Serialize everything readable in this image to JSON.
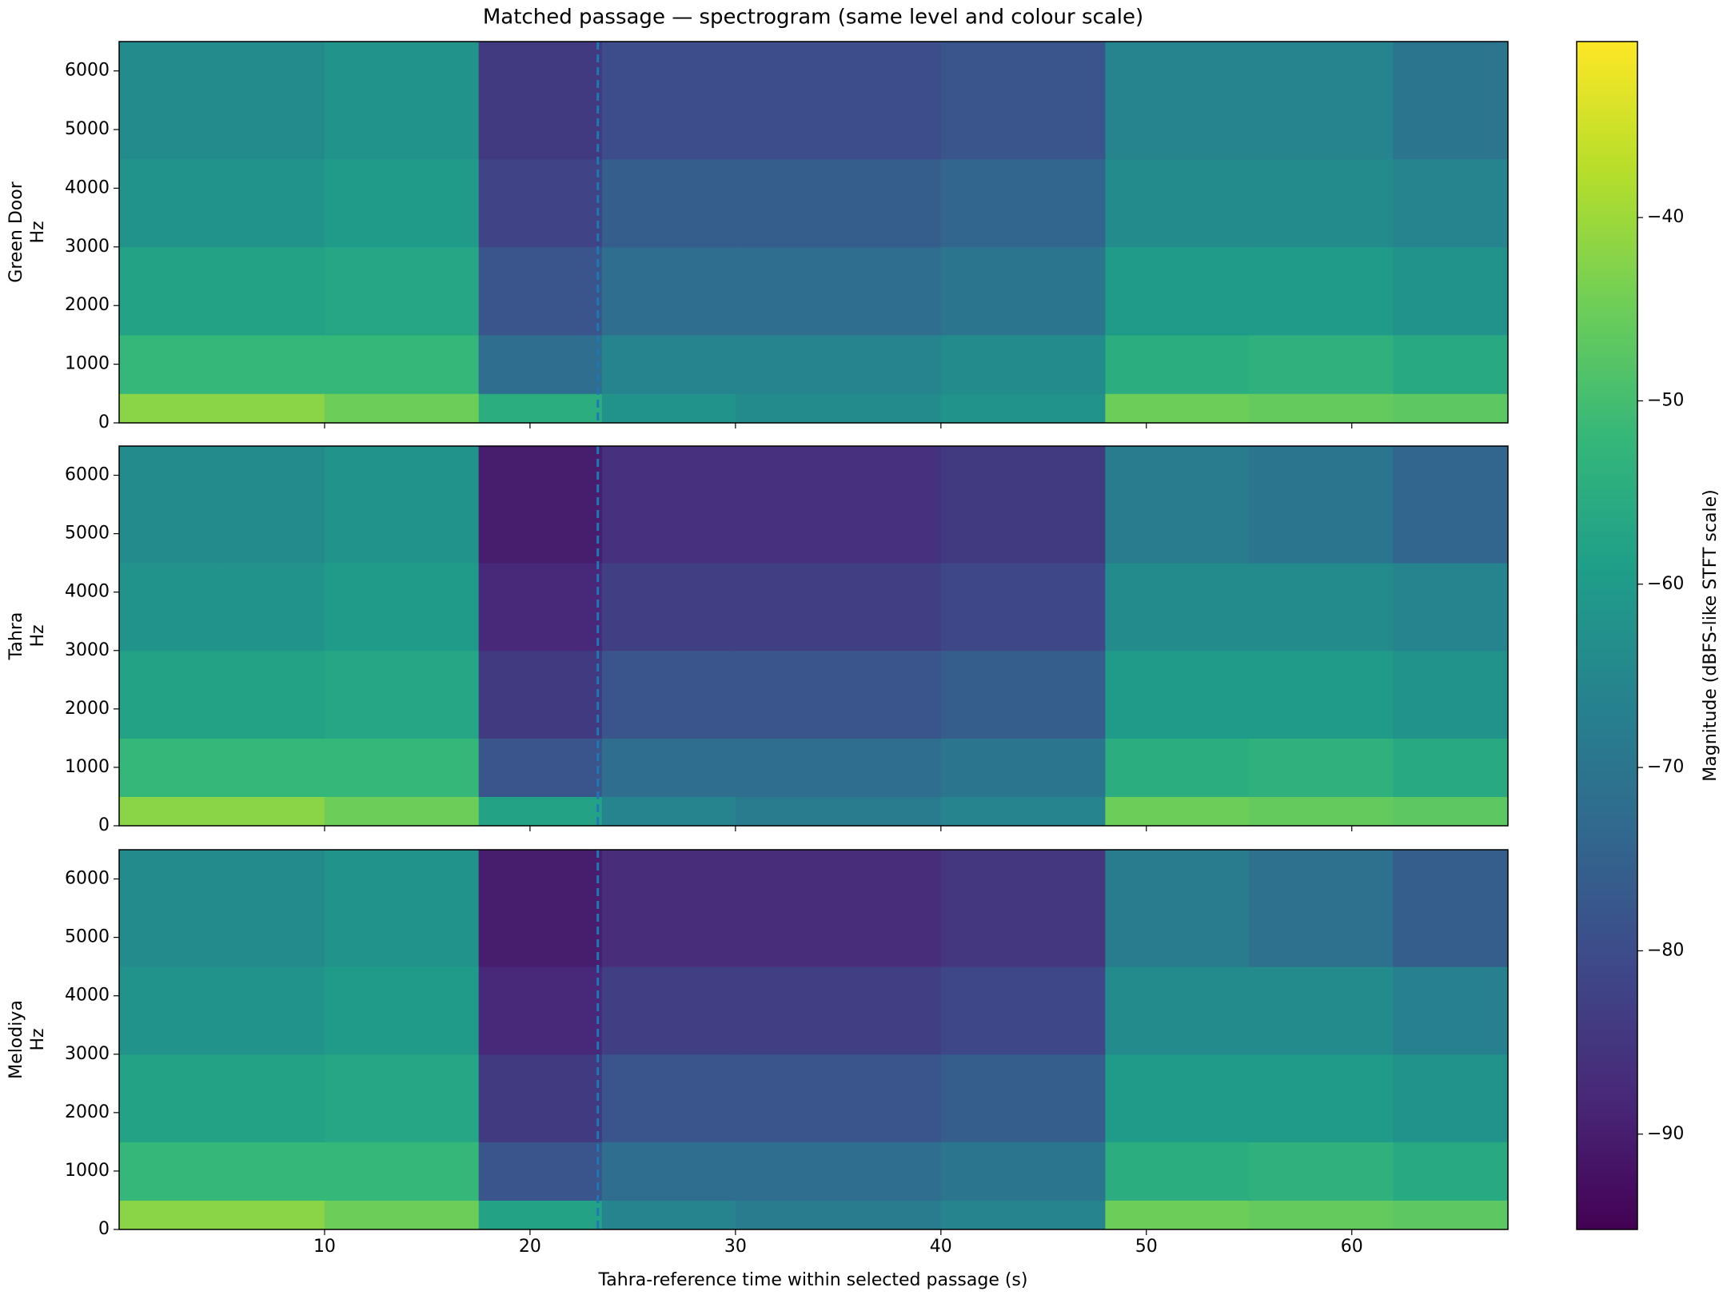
{
  "figure": {
    "title": "Matched passage — spectrogram (same level and colour scale)",
    "xlabel": "Tahra-reference time within selected passage (s)",
    "colormap": "viridis",
    "colorbar": {
      "label": "Magnitude (dBFS-like STFT scale)",
      "lim": [
        -95.2,
        -30.4
      ],
      "ticks": [
        {
          "value": -40,
          "label": "−40"
        },
        {
          "value": -50,
          "label": "−50"
        },
        {
          "value": -60,
          "label": "−60"
        },
        {
          "value": -70,
          "label": "−70"
        },
        {
          "value": -80,
          "label": "−80"
        },
        {
          "value": -90,
          "label": "−90"
        }
      ]
    }
  },
  "chart_data": [
    {
      "type": "heatmap",
      "ylabel": [
        "Green Door",
        "Hz"
      ],
      "x_edges": [
        0,
        5,
        10,
        17.5,
        23.5,
        30,
        40,
        48,
        55,
        62,
        67.6
      ],
      "y_edges": [
        0,
        500,
        1500,
        3000,
        4500,
        6500
      ],
      "values": [
        [
          -42,
          -42,
          -45,
          -55,
          -62,
          -64,
          -62,
          -45,
          -46,
          -47
        ],
        [
          -52,
          -52,
          -52,
          -72,
          -66,
          -66,
          -64,
          -55,
          -54,
          -56
        ],
        [
          -58,
          -58,
          -57,
          -78,
          -72,
          -72,
          -70,
          -60,
          -60,
          -62
        ],
        [
          -62,
          -62,
          -60,
          -82,
          -76,
          -76,
          -74,
          -64,
          -64,
          -66
        ],
        [
          -64,
          -64,
          -62,
          -84,
          -80,
          -80,
          -78,
          -66,
          -66,
          -70
        ]
      ],
      "marker_x": 23.3,
      "xlim": [
        0,
        67.6
      ],
      "ylim": [
        0,
        6500
      ],
      "xticks": [
        10,
        20,
        30,
        40,
        50,
        60
      ],
      "yticks": [
        0,
        1000,
        2000,
        3000,
        4000,
        5000,
        6000
      ]
    },
    {
      "type": "heatmap",
      "ylabel": [
        "Tahra",
        "Hz"
      ],
      "x_edges": [
        0,
        5,
        10,
        17.5,
        23.5,
        30,
        40,
        48,
        55,
        62,
        67.6
      ],
      "y_edges": [
        0,
        500,
        1500,
        3000,
        4500,
        6500
      ],
      "values": [
        [
          -42,
          -42,
          -45,
          -58,
          -66,
          -68,
          -66,
          -45,
          -46,
          -47
        ],
        [
          -52,
          -52,
          -52,
          -78,
          -72,
          -72,
          -70,
          -55,
          -54,
          -56
        ],
        [
          -58,
          -58,
          -57,
          -84,
          -78,
          -78,
          -76,
          -60,
          -60,
          -62
        ],
        [
          -62,
          -62,
          -60,
          -88,
          -83,
          -83,
          -81,
          -64,
          -64,
          -66
        ],
        [
          -64,
          -64,
          -62,
          -90,
          -86,
          -86,
          -84,
          -68,
          -70,
          -74
        ]
      ],
      "marker_x": 23.3,
      "xlim": [
        0,
        67.6
      ],
      "ylim": [
        0,
        6500
      ],
      "xticks": [
        10,
        20,
        30,
        40,
        50,
        60
      ],
      "yticks": [
        0,
        1000,
        2000,
        3000,
        4000,
        5000,
        6000
      ]
    },
    {
      "type": "heatmap",
      "ylabel": [
        "Melodiya",
        "Hz"
      ],
      "x_edges": [
        0,
        5,
        10,
        17.5,
        23.5,
        30,
        40,
        48,
        55,
        62,
        67.6
      ],
      "y_edges": [
        0,
        500,
        1500,
        3000,
        4500,
        6500
      ],
      "values": [
        [
          -42,
          -42,
          -45,
          -58,
          -66,
          -68,
          -66,
          -45,
          -46,
          -47
        ],
        [
          -52,
          -52,
          -52,
          -78,
          -72,
          -72,
          -70,
          -55,
          -54,
          -56
        ],
        [
          -58,
          -58,
          -57,
          -84,
          -78,
          -78,
          -76,
          -60,
          -60,
          -62
        ],
        [
          -62,
          -62,
          -60,
          -88,
          -83,
          -83,
          -81,
          -64,
          -64,
          -67
        ],
        [
          -64,
          -64,
          -62,
          -90,
          -87,
          -87,
          -85,
          -68,
          -71,
          -76
        ]
      ],
      "marker_x": 23.3,
      "xlim": [
        0,
        67.6
      ],
      "ylim": [
        0,
        6500
      ],
      "xticks": [
        10,
        20,
        30,
        40,
        50,
        60
      ],
      "yticks": [
        0,
        1000,
        2000,
        3000,
        4000,
        5000,
        6000
      ],
      "show_xticklabels": true
    }
  ]
}
